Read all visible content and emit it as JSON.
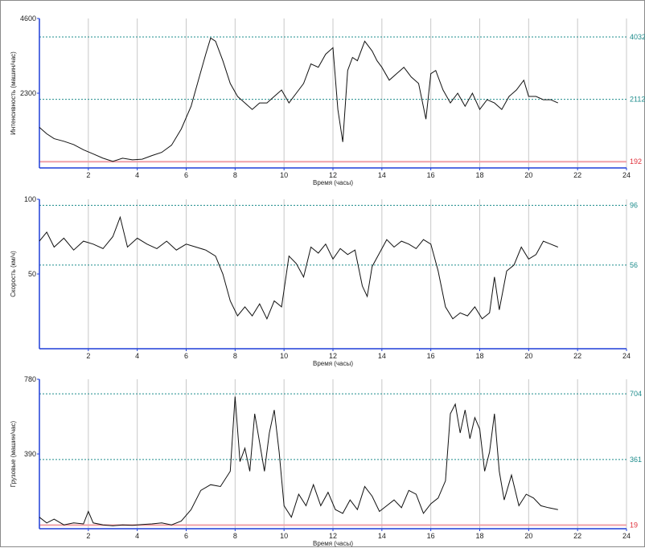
{
  "colors": {
    "axis": "#1f3fd8",
    "grid": "#c8c8c8",
    "series": "#111111",
    "ref_teal": "#1e8c8c",
    "ref_red": "#e0303a",
    "ref_red_line": "#f0a0a8"
  },
  "chart_data": [
    {
      "type": "line",
      "ylabel": "Интенсивность (машин/час)",
      "xlabel": "Время (часы)",
      "xlim": [
        0,
        24
      ],
      "ylim": [
        0,
        4600
      ],
      "xticks": [
        "2",
        "4",
        "6",
        "8",
        "10",
        "12",
        "14",
        "16",
        "18",
        "20",
        "22",
        "24"
      ],
      "yticks": [
        "2300",
        "4600"
      ],
      "grid": true,
      "ref_lines": [
        {
          "value": 4032,
          "label": "4032",
          "color": "teal"
        },
        {
          "value": 2112,
          "label": "2112",
          "color": "teal"
        },
        {
          "value": 192,
          "label": "192",
          "color": "red"
        }
      ],
      "series": [
        {
          "x": [
            0,
            0.3,
            0.6,
            1,
            1.4,
            1.8,
            2.2,
            2.6,
            3,
            3.4,
            3.8,
            4.2,
            4.6,
            5,
            5.4,
            5.8,
            6.2,
            6.5,
            6.8,
            7,
            7.2,
            7.5,
            7.8,
            8.1,
            8.4,
            8.7,
            9,
            9.3,
            9.6,
            9.9,
            10.2,
            10.5,
            10.8,
            11.1,
            11.4,
            11.7,
            12,
            12.2,
            12.4,
            12.6,
            12.8,
            13,
            13.3,
            13.6,
            13.8,
            14,
            14.3,
            14.6,
            14.9,
            15.2,
            15.5,
            15.8,
            16,
            16.2,
            16.5,
            16.8,
            17.1,
            17.4,
            17.7,
            18,
            18.3,
            18.6,
            18.9,
            19.2,
            19.5,
            19.8,
            20,
            20.3,
            20.6,
            20.9,
            21.2
          ],
          "y": [
            1250,
            1050,
            900,
            820,
            720,
            560,
            430,
            300,
            200,
            300,
            250,
            270,
            380,
            480,
            700,
            1200,
            1900,
            2700,
            3500,
            4000,
            3900,
            3300,
            2600,
            2200,
            2000,
            1800,
            2000,
            2000,
            2200,
            2400,
            2000,
            2300,
            2600,
            3200,
            3100,
            3500,
            3700,
            1800,
            800,
            3000,
            3400,
            3300,
            3900,
            3600,
            3300,
            3100,
            2700,
            2900,
            3100,
            2800,
            2600,
            1500,
            2900,
            3000,
            2400,
            2000,
            2300,
            1900,
            2300,
            1800,
            2100,
            2000,
            1800,
            2200,
            2400,
            2700,
            2200,
            2200,
            2100,
            2100,
            2000
          ]
        }
      ]
    },
    {
      "type": "line",
      "ylabel": "Скорость (км/ч)",
      "xlabel": "Время (часы)",
      "xlim": [
        0,
        24
      ],
      "ylim": [
        0,
        100
      ],
      "xticks": [
        "2",
        "4",
        "6",
        "8",
        "10",
        "12",
        "14",
        "16",
        "18",
        "20",
        "22",
        "24"
      ],
      "yticks": [
        "50",
        "100"
      ],
      "grid": true,
      "ref_lines": [
        {
          "value": 96,
          "label": "96",
          "color": "teal"
        },
        {
          "value": 56,
          "label": "56",
          "color": "teal"
        }
      ],
      "series": [
        {
          "x": [
            0,
            0.3,
            0.6,
            1,
            1.4,
            1.8,
            2.2,
            2.6,
            3,
            3.3,
            3.6,
            4,
            4.4,
            4.8,
            5.2,
            5.6,
            6,
            6.4,
            6.8,
            7.2,
            7.5,
            7.8,
            8.1,
            8.4,
            8.7,
            9,
            9.3,
            9.6,
            9.9,
            10.2,
            10.5,
            10.8,
            11.1,
            11.4,
            11.7,
            12,
            12.3,
            12.6,
            12.9,
            13.2,
            13.4,
            13.6,
            13.9,
            14.2,
            14.5,
            14.8,
            15.1,
            15.4,
            15.7,
            16,
            16.3,
            16.6,
            16.9,
            17.2,
            17.5,
            17.8,
            18.1,
            18.4,
            18.6,
            18.8,
            19.1,
            19.4,
            19.7,
            20,
            20.3,
            20.6,
            20.9,
            21.2
          ],
          "y": [
            72,
            78,
            68,
            74,
            66,
            72,
            70,
            67,
            75,
            88,
            68,
            74,
            70,
            67,
            72,
            66,
            70,
            68,
            66,
            62,
            50,
            32,
            22,
            28,
            22,
            30,
            20,
            32,
            28,
            62,
            57,
            48,
            68,
            64,
            70,
            60,
            67,
            63,
            66,
            42,
            35,
            55,
            64,
            73,
            68,
            72,
            70,
            67,
            73,
            70,
            52,
            28,
            20,
            24,
            22,
            28,
            20,
            24,
            48,
            26,
            52,
            56,
            68,
            60,
            63,
            72,
            70,
            68
          ]
        }
      ]
    },
    {
      "type": "line",
      "ylabel": "Грузовые (машин/час)",
      "xlabel": "Время (часы)",
      "xlim": [
        0,
        24
      ],
      "ylim": [
        0,
        780
      ],
      "xticks": [
        "2",
        "4",
        "6",
        "8",
        "10",
        "12",
        "14",
        "16",
        "18",
        "20",
        "22",
        "24"
      ],
      "yticks": [
        "390",
        "780"
      ],
      "grid": true,
      "ref_lines": [
        {
          "value": 704,
          "label": "704",
          "color": "teal"
        },
        {
          "value": 361,
          "label": "361",
          "color": "teal"
        },
        {
          "value": 19,
          "label": "19",
          "color": "red"
        }
      ],
      "series": [
        {
          "x": [
            0,
            0.3,
            0.6,
            1,
            1.4,
            1.8,
            2,
            2.2,
            2.6,
            3,
            3.4,
            3.8,
            4.2,
            4.6,
            5,
            5.4,
            5.8,
            6.2,
            6.6,
            7,
            7.4,
            7.8,
            8,
            8.2,
            8.4,
            8.6,
            8.8,
            9,
            9.2,
            9.4,
            9.6,
            9.8,
            10,
            10.3,
            10.6,
            10.9,
            11.2,
            11.5,
            11.8,
            12.1,
            12.4,
            12.7,
            13,
            13.3,
            13.6,
            13.9,
            14.2,
            14.5,
            14.8,
            15.1,
            15.4,
            15.7,
            16,
            16.3,
            16.6,
            16.8,
            17,
            17.2,
            17.4,
            17.6,
            17.8,
            18,
            18.2,
            18.4,
            18.6,
            18.8,
            19,
            19.3,
            19.6,
            19.9,
            20.2,
            20.5,
            20.8,
            21.2
          ],
          "y": [
            60,
            30,
            50,
            20,
            30,
            25,
            90,
            30,
            20,
            15,
            20,
            18,
            22,
            25,
            30,
            20,
            40,
            100,
            200,
            230,
            220,
            300,
            690,
            350,
            420,
            300,
            600,
            450,
            300,
            500,
            620,
            400,
            120,
            60,
            180,
            120,
            230,
            120,
            190,
            100,
            80,
            150,
            100,
            220,
            170,
            90,
            120,
            150,
            110,
            200,
            180,
            80,
            130,
            160,
            250,
            600,
            650,
            500,
            620,
            470,
            580,
            520,
            300,
            400,
            600,
            300,
            150,
            280,
            120,
            180,
            160,
            120,
            110,
            100
          ]
        }
      ]
    }
  ]
}
